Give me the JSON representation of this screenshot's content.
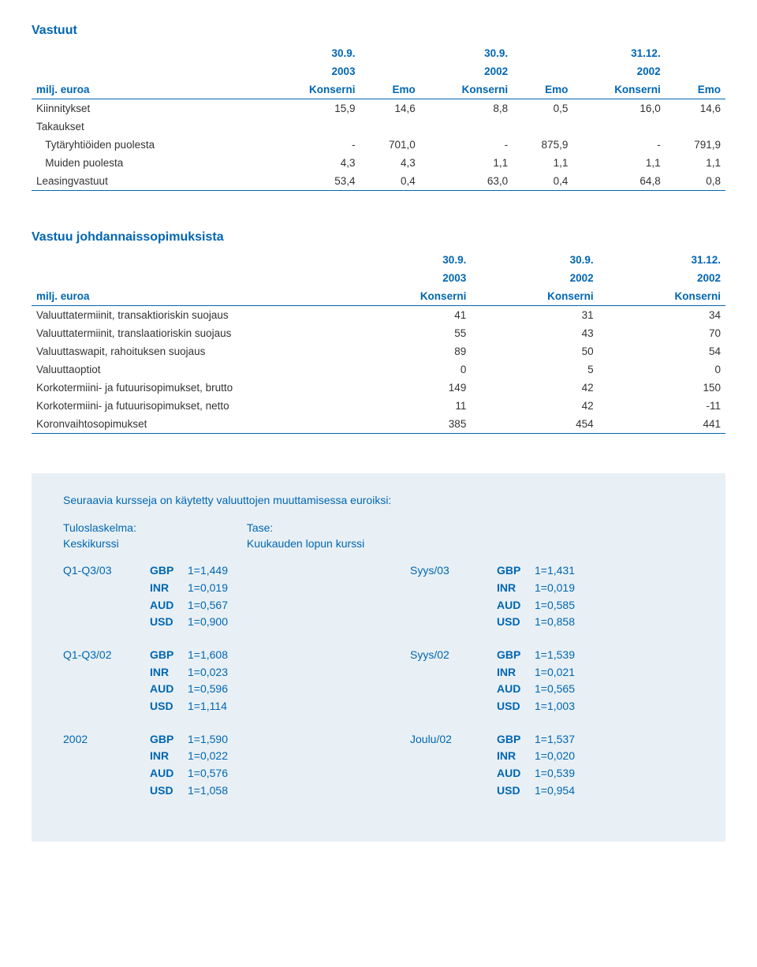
{
  "vastuut": {
    "title": "Vastuut",
    "dates": [
      "30.9.",
      "",
      "30.9.",
      "",
      "31.12.",
      ""
    ],
    "years": [
      "2003",
      "",
      "2002",
      "",
      "2002",
      ""
    ],
    "row_label": "milj. euroa",
    "cols": [
      "Konserni",
      "Emo",
      "Konserni",
      "Emo",
      "Konserni",
      "Emo"
    ],
    "rows": [
      {
        "label": "Kiinnitykset",
        "v": [
          "15,9",
          "14,6",
          "8,8",
          "0,5",
          "16,0",
          "14,6"
        ]
      },
      {
        "label": "Takaukset",
        "v": [
          "",
          "",
          "",
          "",
          "",
          ""
        ]
      },
      {
        "label": "  Tytäryhtiöiden puolesta",
        "v": [
          "-",
          "701,0",
          "-",
          "875,9",
          "-",
          "791,9"
        ]
      },
      {
        "label": "  Muiden puolesta",
        "v": [
          "4,3",
          "4,3",
          "1,1",
          "1,1",
          "1,1",
          "1,1"
        ]
      },
      {
        "label": "Leasingvastuut",
        "v": [
          "53,4",
          "0,4",
          "63,0",
          "0,4",
          "64,8",
          "0,8"
        ]
      }
    ]
  },
  "vjs": {
    "title": "Vastuu johdannaissopimuksista",
    "dates": [
      "30.9.",
      "30.9.",
      "31.12."
    ],
    "years": [
      "2003",
      "2002",
      "2002"
    ],
    "row_label": "milj. euroa",
    "cols": [
      "Konserni",
      "Konserni",
      "Konserni"
    ],
    "rows": [
      {
        "label": "Valuuttatermiinit, transaktioriskin suojaus",
        "v": [
          "41",
          "31",
          "34"
        ]
      },
      {
        "label": "Valuuttatermiinit, translaatioriskin suojaus",
        "v": [
          "55",
          "43",
          "70"
        ]
      },
      {
        "label": "Valuuttaswapit, rahoituksen suojaus",
        "v": [
          "89",
          "50",
          "54"
        ]
      },
      {
        "label": "Valuuttaoptiot",
        "v": [
          "0",
          "5",
          "0"
        ]
      },
      {
        "label": "Korkotermiini- ja futuurisopimukset, brutto",
        "v": [
          "149",
          "42",
          "150"
        ]
      },
      {
        "label": "Korkotermiini- ja futuurisopimukset, netto",
        "v": [
          "11",
          "42",
          "-11"
        ]
      },
      {
        "label": "Koronvaihtosopimukset",
        "v": [
          "385",
          "454",
          "441"
        ]
      }
    ]
  },
  "rates": {
    "intro": "Seuraavia kursseja on käytetty valuuttojen muuttamisessa euroiksi:",
    "left_heading1": "Tuloslaskelma:",
    "left_heading2": "Keskikurssi",
    "right_heading1": "Tase:",
    "right_heading2": "Kuukauden lopun kurssi",
    "left": [
      {
        "label": "Q1-Q3/03",
        "r": [
          [
            "GBP",
            "1=1,449"
          ],
          [
            "INR",
            "1=0,019"
          ],
          [
            "AUD",
            "1=0,567"
          ],
          [
            "USD",
            "1=0,900"
          ]
        ]
      },
      {
        "label": "Q1-Q3/02",
        "r": [
          [
            "GBP",
            "1=1,608"
          ],
          [
            "INR",
            "1=0,023"
          ],
          [
            "AUD",
            "1=0,596"
          ],
          [
            "USD",
            "1=1,114"
          ]
        ]
      },
      {
        "label": "2002",
        "r": [
          [
            "GBP",
            "1=1,590"
          ],
          [
            "INR",
            "1=0,022"
          ],
          [
            "AUD",
            "1=0,576"
          ],
          [
            "USD",
            "1=1,058"
          ]
        ]
      }
    ],
    "right": [
      {
        "label": "Syys/03",
        "r": [
          [
            "GBP",
            "1=1,431"
          ],
          [
            "INR",
            "1=0,019"
          ],
          [
            "AUD",
            "1=0,585"
          ],
          [
            "USD",
            "1=0,858"
          ]
        ]
      },
      {
        "label": "Syys/02",
        "r": [
          [
            "GBP",
            "1=1,539"
          ],
          [
            "INR",
            "1=0,021"
          ],
          [
            "AUD",
            "1=0,565"
          ],
          [
            "USD",
            "1=1,003"
          ]
        ]
      },
      {
        "label": "Joulu/02",
        "r": [
          [
            "GBP",
            "1=1,537"
          ],
          [
            "INR",
            "1=0,020"
          ],
          [
            "AUD",
            "1=0,539"
          ],
          [
            "USD",
            "1=0,954"
          ]
        ]
      }
    ]
  },
  "colors": {
    "primary": "#0066b3",
    "box_bg": "#e8f0f5",
    "text": "#333333"
  }
}
